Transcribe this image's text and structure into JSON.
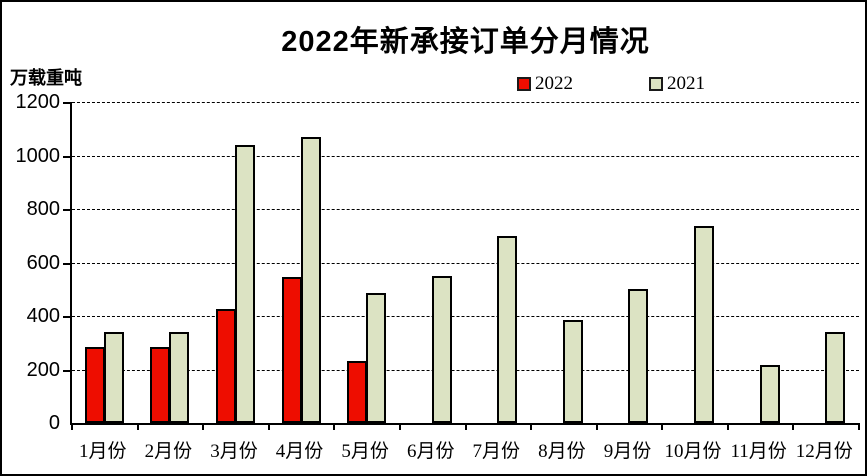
{
  "title": "2022年新承接订单分月情况",
  "unit_label": "万载重吨",
  "legend": [
    {
      "label": "2022",
      "color": "#ee0d00"
    },
    {
      "label": "2021",
      "color": "#dce3c3"
    }
  ],
  "chart_data": {
    "type": "bar",
    "title": "2022年新承接订单分月情况",
    "ylabel": "万载重吨",
    "xlabel": "",
    "categories": [
      "1月份",
      "2月份",
      "3月份",
      "4月份",
      "5月份",
      "6月份",
      "7月份",
      "8月份",
      "9月份",
      "10月份",
      "11月份",
      "12月份"
    ],
    "series": [
      {
        "name": "2022",
        "color": "#ee0d00",
        "values": [
          285,
          285,
          425,
          545,
          230,
          null,
          null,
          null,
          null,
          null,
          null,
          null
        ]
      },
      {
        "name": "2021",
        "color": "#dce3c3",
        "values": [
          340,
          340,
          1040,
          1070,
          485,
          550,
          700,
          385,
          500,
          735,
          215,
          340
        ]
      }
    ],
    "ylim": [
      0,
      1200
    ],
    "ytick_interval": 200,
    "yticks": [
      0,
      200,
      400,
      600,
      800,
      1000,
      1200
    ],
    "grid": "horizontal-dashed",
    "legend_position": "top"
  }
}
